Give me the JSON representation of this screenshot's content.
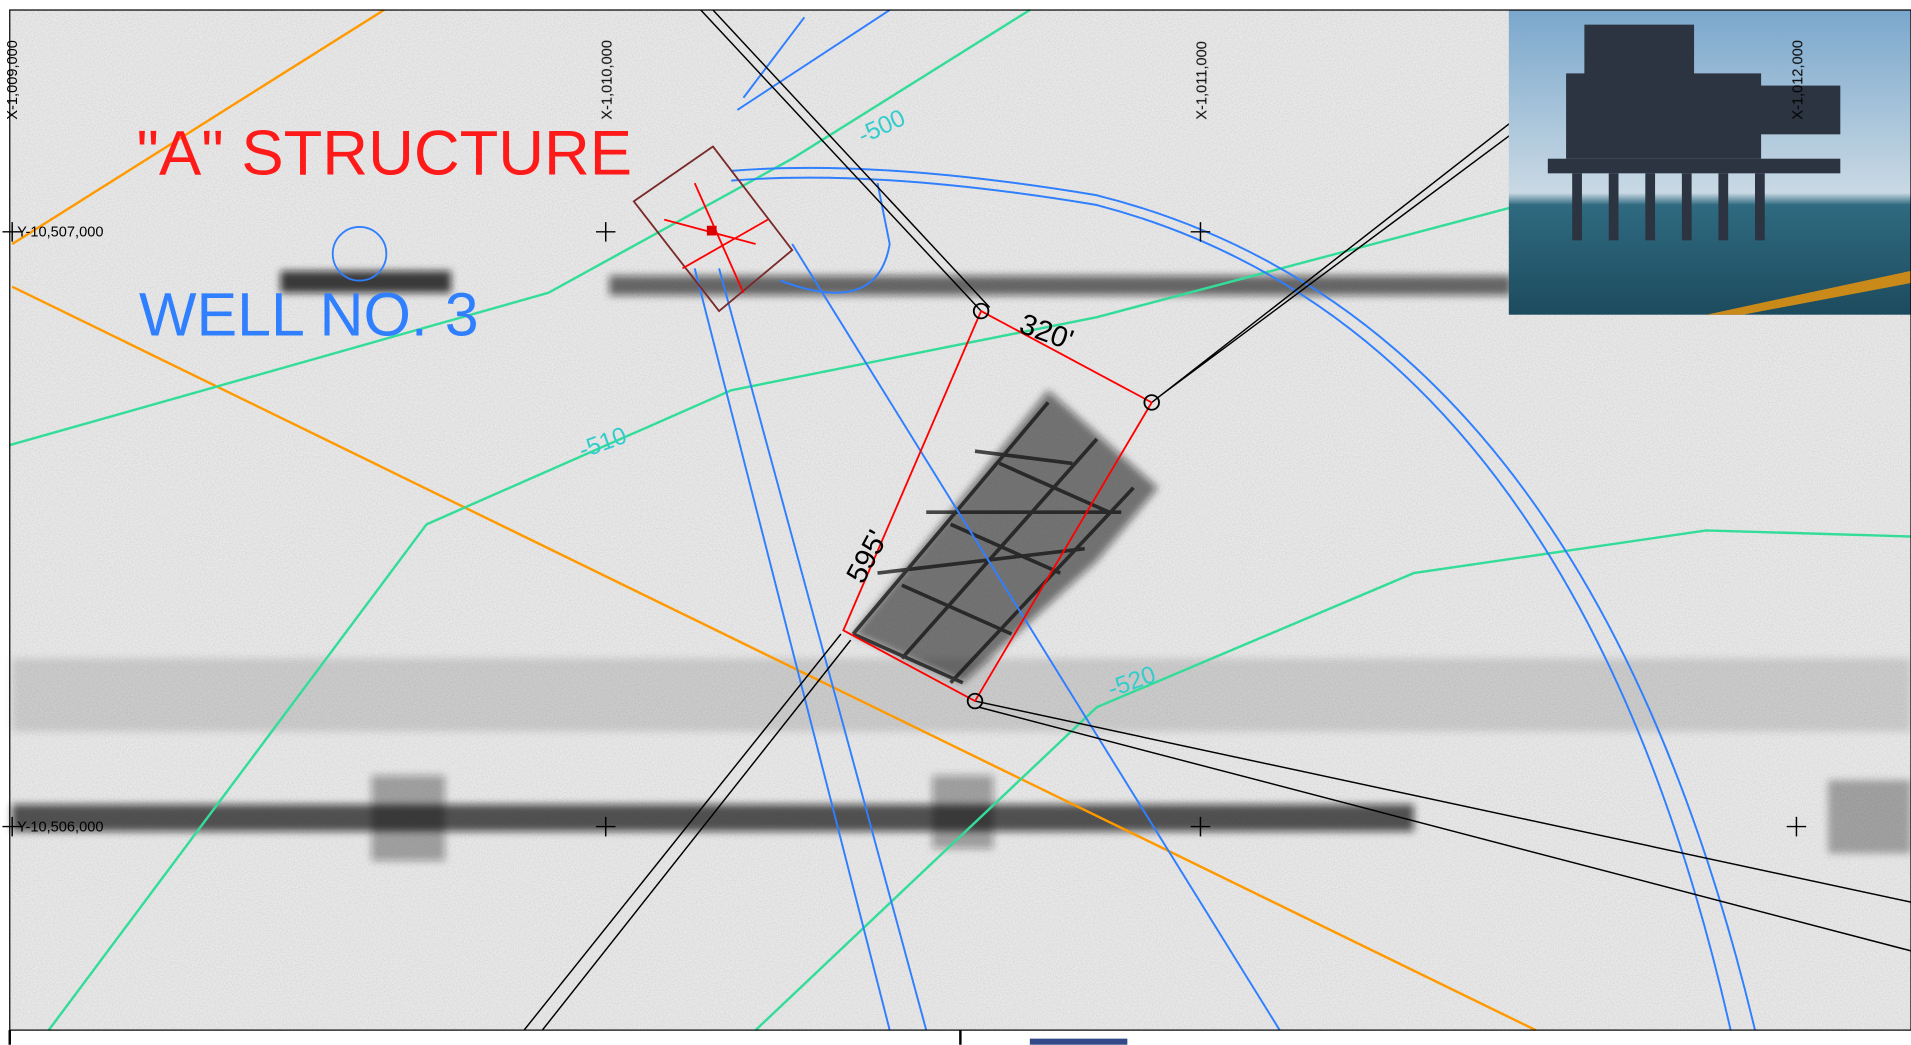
{
  "map": {
    "structure_label": "\"A\" STRUCTURE",
    "well_label": "WELL NO. 3",
    "dimensions": [
      "320'",
      "595'"
    ],
    "contours": [
      "-500",
      "-510",
      "-520"
    ],
    "x_grid": [
      "X-1,009,000",
      "X-1,010,000",
      "X-1,011,000",
      "X-1,012,000"
    ],
    "y_grid": [
      "Y-10,507,000",
      "Y-10,506,000"
    ]
  }
}
